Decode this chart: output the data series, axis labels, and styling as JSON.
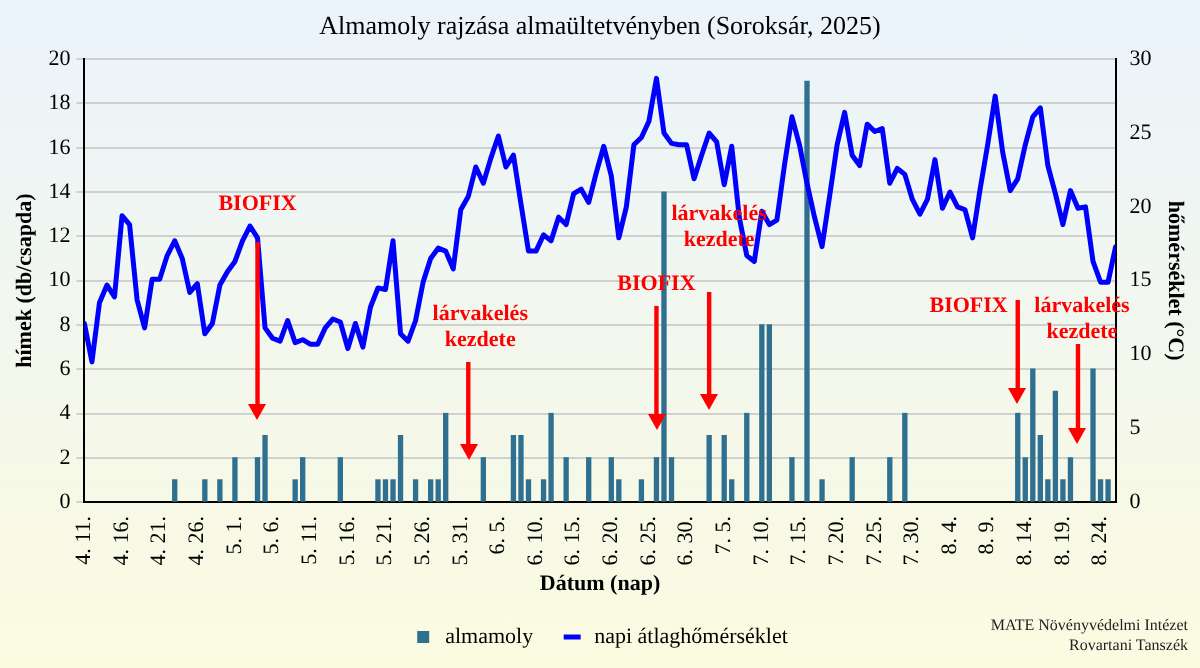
{
  "chart_data": {
    "type": "bar",
    "title": "Almamoly rajzása almaültetvényben (Soroksár, 2025)",
    "xlabel": "Dátum (nap)",
    "ylabel": "hímek (db/csapda)",
    "y2label": "hőmérséklet (°C)",
    "xlim": [
      "--04-11",
      "--08-26"
    ],
    "xticks": [
      {
        "value": "--04-11",
        "label": "4. 11."
      },
      {
        "value": "--04-16",
        "label": "4. 16."
      },
      {
        "value": "--04-21",
        "label": "4. 21."
      },
      {
        "value": "--04-26",
        "label": "4. 26."
      },
      {
        "value": "--05-01",
        "label": "5. 1."
      },
      {
        "value": "--05-06",
        "label": "5. 6."
      },
      {
        "value": "--05-11",
        "label": "5. 11."
      },
      {
        "value": "--05-16",
        "label": "5. 16."
      },
      {
        "value": "--05-21",
        "label": "5. 21."
      },
      {
        "value": "--05-26",
        "label": "5. 26."
      },
      {
        "value": "--05-31",
        "label": "5. 31."
      },
      {
        "value": "--06-05",
        "label": "6. 5."
      },
      {
        "value": "--06-10",
        "label": "6. 10."
      },
      {
        "value": "--06-15",
        "label": "6. 15."
      },
      {
        "value": "--06-20",
        "label": "6. 20."
      },
      {
        "value": "--06-25",
        "label": "6. 25."
      },
      {
        "value": "--06-30",
        "label": "6. 30."
      },
      {
        "value": "--07-05",
        "label": "7. 5."
      },
      {
        "value": "--07-10",
        "label": "7. 10."
      },
      {
        "value": "--07-15",
        "label": "7. 15."
      },
      {
        "value": "--07-20",
        "label": "7. 20."
      },
      {
        "value": "--07-25",
        "label": "7. 25."
      },
      {
        "value": "--07-30",
        "label": "7. 30."
      },
      {
        "value": "--08-04",
        "label": "8. 4."
      },
      {
        "value": "--08-09",
        "label": "8. 9."
      },
      {
        "value": "--08-14",
        "label": "8. 14."
      },
      {
        "value": "--08-19",
        "label": "8. 19."
      },
      {
        "value": "--08-24",
        "label": "8. 24."
      }
    ],
    "ylim": [
      0,
      20
    ],
    "yticks": [
      0,
      2,
      4,
      6,
      8,
      10,
      12,
      14,
      16,
      18,
      20
    ],
    "y2lim": [
      0,
      30
    ],
    "y2ticks": [
      0,
      5,
      10,
      15,
      20,
      25,
      30
    ],
    "grid": "y",
    "legend": "bottom",
    "series": [
      {
        "name": "almamoly",
        "color": "#2f6f8f",
        "x": [
          "--04-23",
          "--04-27",
          "--04-29",
          "--05-01",
          "--05-04",
          "--05-05",
          "--05-09",
          "--05-10",
          "--05-15",
          "--05-20",
          "--05-21",
          "--05-22",
          "--05-23",
          "--05-25",
          "--05-27",
          "--05-28",
          "--05-29",
          "--06-03",
          "--06-07",
          "--06-08",
          "--06-09",
          "--06-11",
          "--06-12",
          "--06-14",
          "--06-17",
          "--06-20",
          "--06-21",
          "--06-24",
          "--06-26",
          "--06-27",
          "--06-28",
          "--07-03",
          "--07-05",
          "--07-06",
          "--07-08",
          "--07-10",
          "--07-11",
          "--07-14",
          "--07-16",
          "--07-18",
          "--07-22",
          "--07-27",
          "--07-29",
          "--08-13",
          "--08-14",
          "--08-15",
          "--08-16",
          "--08-17",
          "--08-18",
          "--08-19",
          "--08-20",
          "--08-23",
          "--08-24",
          "--08-25"
        ],
        "values": [
          1,
          1,
          1,
          2,
          2,
          3,
          1,
          2,
          2,
          1,
          1,
          1,
          3,
          1,
          1,
          1,
          4,
          2,
          3,
          3,
          1,
          1,
          4,
          2,
          2,
          2,
          1,
          1,
          2,
          14,
          2,
          3,
          3,
          1,
          4,
          8,
          8,
          2,
          19,
          1,
          2,
          2,
          4,
          4,
          2,
          6,
          3,
          1,
          5,
          1,
          2,
          6,
          1,
          1
        ]
      },
      {
        "name": "napi átlaghőmérséklet",
        "type": "line",
        "axis": "y2",
        "color": "#0000ff",
        "x": [
          "--04-11",
          "--04-12",
          "--04-13",
          "--04-14",
          "--04-15",
          "--04-16",
          "--04-17",
          "--04-18",
          "--04-19",
          "--04-20",
          "--04-21",
          "--04-22",
          "--04-23",
          "--04-24",
          "--04-25",
          "--04-26",
          "--04-27",
          "--04-28",
          "--04-29",
          "--04-30",
          "--05-01",
          "--05-02",
          "--05-03",
          "--05-04",
          "--05-05",
          "--05-06",
          "--05-07",
          "--05-08",
          "--05-09",
          "--05-10",
          "--05-11",
          "--05-12",
          "--05-13",
          "--05-14",
          "--05-15",
          "--05-16",
          "--05-17",
          "--05-18",
          "--05-19",
          "--05-20",
          "--05-21",
          "--05-22",
          "--05-23",
          "--05-24",
          "--05-25",
          "--05-26",
          "--05-27",
          "--05-28",
          "--05-29",
          "--05-30",
          "--05-31",
          "--06-01",
          "--06-02",
          "--06-03",
          "--06-04",
          "--06-05",
          "--06-06",
          "--06-07",
          "--06-08",
          "--06-09",
          "--06-10",
          "--06-11",
          "--06-12",
          "--06-13",
          "--06-14",
          "--06-15",
          "--06-16",
          "--06-17",
          "--06-18",
          "--06-19",
          "--06-20",
          "--06-21",
          "--06-22",
          "--06-23",
          "--06-24",
          "--06-25",
          "--06-26",
          "--06-27",
          "--06-28",
          "--06-29",
          "--06-30",
          "--07-01",
          "--07-02",
          "--07-03",
          "--07-04",
          "--07-05",
          "--07-06",
          "--07-07",
          "--07-08",
          "--07-09",
          "--07-10",
          "--07-11",
          "--07-12",
          "--07-13",
          "--07-14",
          "--07-15",
          "--07-16",
          "--07-17",
          "--07-18",
          "--07-19",
          "--07-20",
          "--07-21",
          "--07-22",
          "--07-23",
          "--07-24",
          "--07-25",
          "--07-26",
          "--07-27",
          "--07-28",
          "--07-29",
          "--07-30",
          "--07-31",
          "--08-01",
          "--08-02",
          "--08-03",
          "--08-04",
          "--08-05",
          "--08-06",
          "--08-07",
          "--08-08",
          "--08-09",
          "--08-10",
          "--08-11",
          "--08-12",
          "--08-13",
          "--08-14",
          "--08-15",
          "--08-16",
          "--08-17",
          "--08-18",
          "--08-19",
          "--08-20",
          "--08-21",
          "--08-22",
          "--08-23",
          "--08-24",
          "--08-25",
          "--08-26"
        ],
        "values": [
          12.1,
          9.5,
          13.5,
          14.7,
          13.9,
          19.4,
          18.8,
          13.7,
          11.8,
          15.1,
          15.1,
          16.7,
          17.7,
          16.5,
          14.2,
          14.8,
          11.4,
          12.1,
          14.7,
          15.6,
          16.3,
          17.7,
          18.7,
          17.9,
          11.8,
          11.1,
          10.9,
          12.3,
          10.8,
          11.0,
          10.7,
          10.7,
          11.8,
          12.4,
          12.2,
          10.4,
          12.1,
          10.5,
          13.2,
          14.5,
          14.4,
          17.7,
          11.4,
          10.9,
          12.3,
          14.9,
          16.5,
          17.2,
          17.0,
          15.8,
          19.8,
          20.7,
          22.7,
          21.6,
          23.3,
          24.8,
          22.7,
          23.5,
          20.2,
          17.0,
          17.0,
          18.1,
          17.7,
          19.3,
          18.8,
          20.9,
          21.2,
          20.3,
          22.3,
          24.1,
          22.1,
          17.9,
          20.0,
          24.2,
          24.7,
          25.8,
          28.7,
          25.0,
          24.3,
          24.2,
          24.2,
          21.9,
          23.5,
          25.0,
          24.4,
          21.5,
          24.1,
          19.3,
          16.7,
          16.3,
          19.7,
          18.8,
          19.1,
          22.8,
          26.1,
          24.2,
          21.6,
          19.3,
          17.3,
          20.7,
          24.2,
          26.4,
          23.5,
          22.8,
          25.6,
          25.1,
          25.3,
          21.6,
          22.6,
          22.2,
          20.5,
          19.5,
          20.5,
          23.2,
          19.9,
          21.0,
          20.0,
          19.8,
          17.9,
          21.2,
          24.2,
          27.5,
          23.7,
          21.1,
          21.9,
          24.2,
          26.1,
          26.7,
          22.8,
          20.9,
          18.8,
          21.1,
          19.9,
          20.0,
          16.3,
          14.9,
          14.9,
          17.3
        ]
      }
    ],
    "ref_lines": [
      {
        "axis": "x",
        "value": "--05-04",
        "label": "BIOFIX",
        "color": "#ff0000"
      },
      {
        "axis": "x",
        "value": "--06-01",
        "label": "lárvakelés kezdete",
        "color": "#ff0000"
      },
      {
        "axis": "x",
        "value": "--06-26",
        "label": "BIOFIX",
        "color": "#ff0000"
      },
      {
        "axis": "x",
        "value": "--07-03",
        "label": "lárvakelés kezdete",
        "color": "#ff0000"
      },
      {
        "axis": "x",
        "value": "--08-13",
        "label": "BIOFIX",
        "color": "#ff0000"
      },
      {
        "axis": "x",
        "value": "--08-21",
        "label": "lárvakelés kezdete",
        "color": "#ff0000"
      }
    ],
    "annotations": [
      "MATE Növényvédelmi Intézet",
      "Rovartani Tanszék"
    ]
  }
}
